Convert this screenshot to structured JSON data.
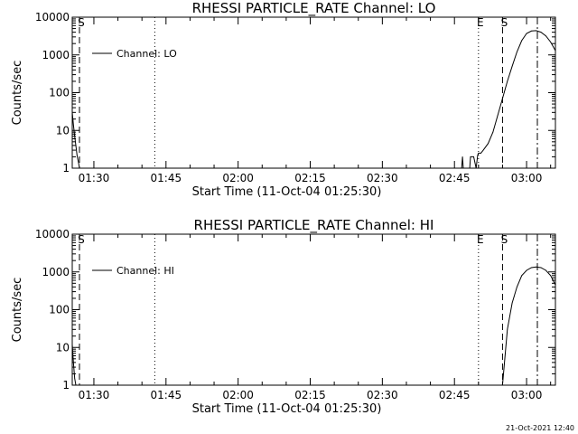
{
  "footer": {
    "timestamp": "21-Oct-2021 12:40"
  },
  "chart_data": [
    {
      "type": "line",
      "title": "RHESSI PARTICLE_RATE Channel: LO",
      "xlabel": "Start Time (11-Oct-04 01:25:30)",
      "ylabel": "Counts/sec",
      "xlim": [
        "01:25:30",
        "03:06:00"
      ],
      "ylim": [
        1,
        10000
      ],
      "y_scale": "log",
      "grid": false,
      "legend_position": "top-left",
      "x_tick_labels": [
        "01:30",
        "01:45",
        "02:00",
        "02:15",
        "02:30",
        "02:45",
        "03:00"
      ],
      "y_tick_labels": [
        "1",
        "10",
        "100",
        "1000",
        "10000"
      ],
      "markers": [
        {
          "time": "01:27:00",
          "style": "dashed",
          "label": "S"
        },
        {
          "time": "01:42:40",
          "style": "dotted",
          "label": ""
        },
        {
          "time": "02:50:00",
          "style": "dotted",
          "label": "E"
        },
        {
          "time": "02:55:00",
          "style": "dashed",
          "label": "S"
        },
        {
          "time": "03:06:00",
          "style": "dashdot",
          "label": ""
        }
      ],
      "series": [
        {
          "name": "Channel: LO",
          "x": [
            "01:25:30",
            "01:25:45",
            "01:26:00",
            "01:26:15",
            "01:26:30",
            "01:26:45",
            "01:27:00",
            "02:46:30",
            "02:46:40",
            "02:46:50",
            "02:47:20",
            "02:48:10",
            "02:48:20",
            "02:49:00",
            "02:49:30",
            "02:49:50",
            "02:50:00",
            "02:50:30",
            "02:51:00",
            "02:52:00",
            "02:53:00",
            "02:54:00",
            "02:55:00",
            "02:56:00",
            "02:57:00",
            "02:58:00",
            "02:59:00",
            "03:00:00",
            "03:01:00",
            "03:02:00",
            "03:03:00",
            "03:04:00",
            "03:05:00",
            "03:06:00"
          ],
          "y": [
            30,
            14,
            7,
            4,
            2.2,
            1.5,
            1,
            1,
            2,
            1,
            1,
            1,
            2,
            2,
            1,
            2.2,
            2.5,
            2.5,
            3,
            4.5,
            9,
            25,
            70,
            200,
            500,
            1200,
            2400,
            3700,
            4300,
            4400,
            4000,
            3200,
            2200,
            1300
          ]
        }
      ]
    },
    {
      "type": "line",
      "title": "RHESSI PARTICLE_RATE Channel: HI",
      "xlabel": "Start Time (11-Oct-04 01:25:30)",
      "ylabel": "Counts/sec",
      "xlim": [
        "01:25:30",
        "03:06:00"
      ],
      "ylim": [
        1,
        10000
      ],
      "y_scale": "log",
      "grid": false,
      "legend_position": "top-left",
      "x_tick_labels": [
        "01:30",
        "01:45",
        "02:00",
        "02:15",
        "02:30",
        "02:45",
        "03:00"
      ],
      "y_tick_labels": [
        "1",
        "10",
        "100",
        "1000",
        "10000"
      ],
      "markers": [
        {
          "time": "01:27:00",
          "style": "dashed",
          "label": "S"
        },
        {
          "time": "01:42:40",
          "style": "dotted",
          "label": ""
        },
        {
          "time": "02:50:00",
          "style": "dotted",
          "label": "E"
        },
        {
          "time": "02:55:00",
          "style": "dashed",
          "label": "S"
        },
        {
          "time": "03:06:00",
          "style": "dashdot",
          "label": ""
        }
      ],
      "series": [
        {
          "name": "Channel: HI",
          "x": [
            "01:25:30",
            "01:25:45",
            "01:26:00",
            "01:26:15",
            "02:55:00",
            "02:56:00",
            "02:57:00",
            "02:58:00",
            "02:59:00",
            "03:00:00",
            "03:01:00",
            "03:02:00",
            "03:03:00",
            "03:04:00",
            "03:05:00",
            "03:06:00"
          ],
          "y": [
            12,
            4,
            1.5,
            1,
            1,
            30,
            150,
            400,
            800,
            1100,
            1300,
            1350,
            1300,
            1100,
            800,
            450
          ]
        }
      ]
    }
  ]
}
